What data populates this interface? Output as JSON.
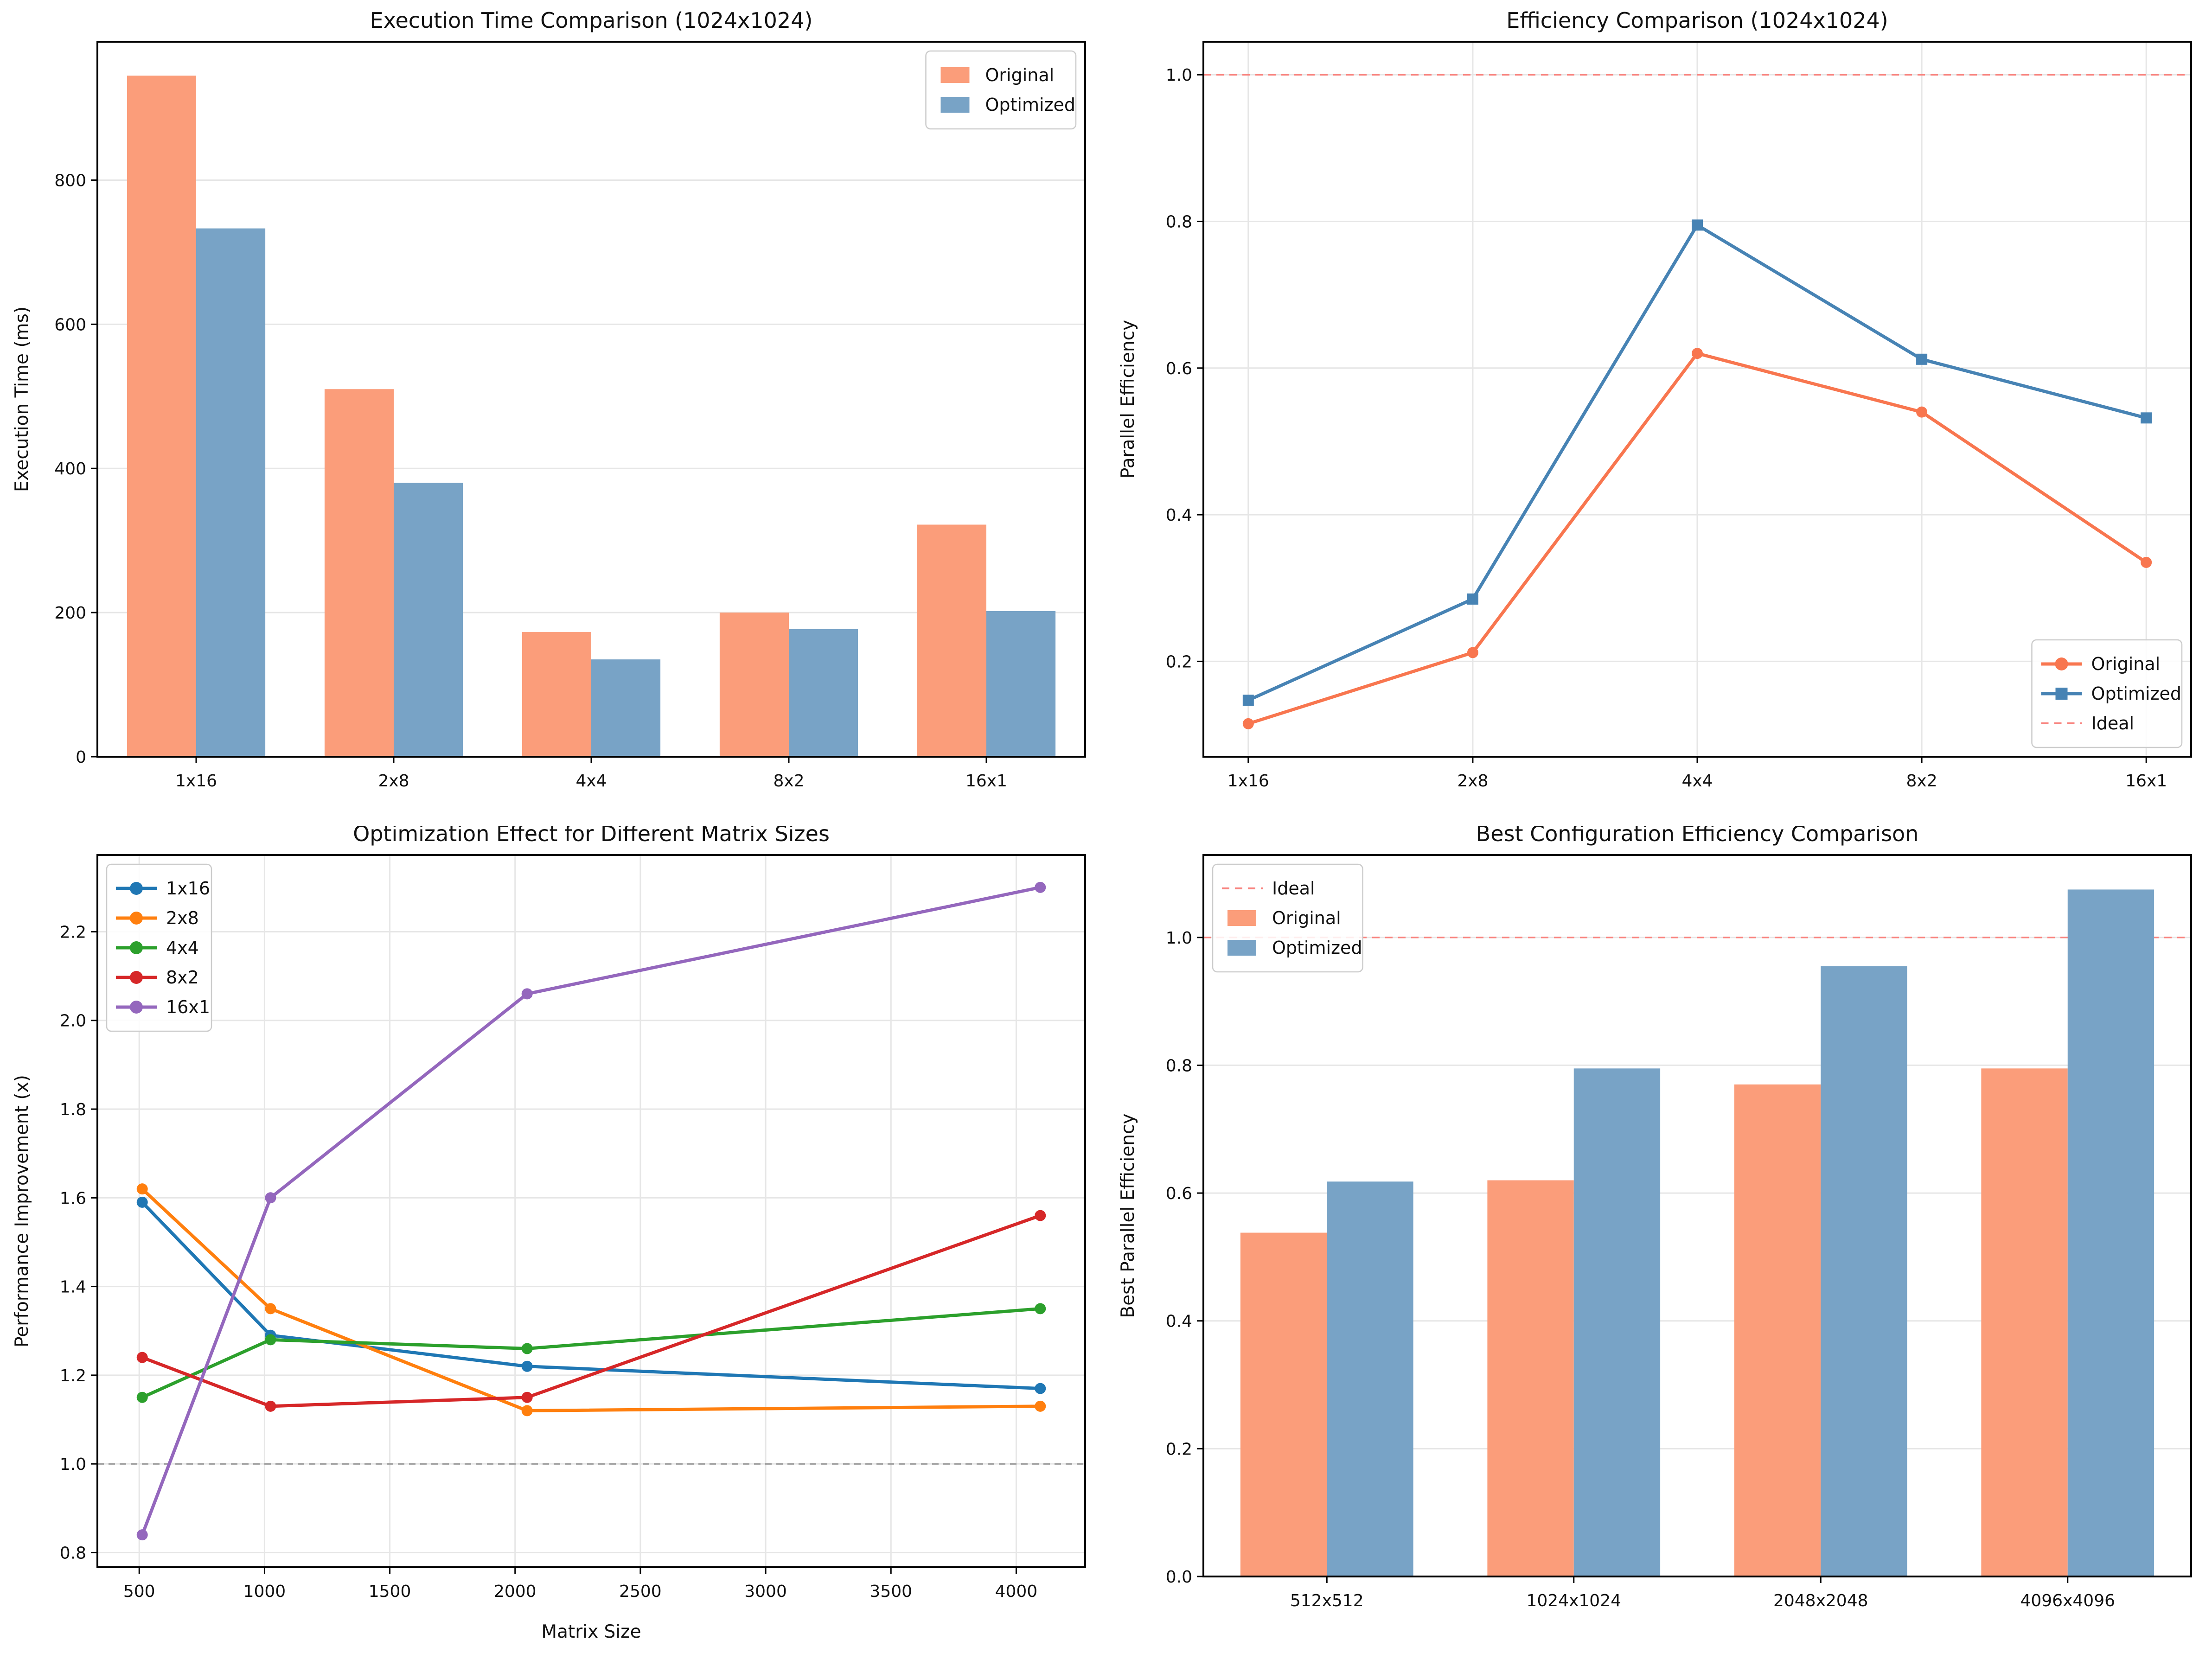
{
  "figure": {
    "background": "#ffffff",
    "grid_color": "#e6e6e6",
    "spine_color": "#000000",
    "text_color": "#111111",
    "legend_border_color": "#cccccc"
  },
  "chart_data": [
    {
      "id": "execution-time",
      "type": "bar",
      "title": "Execution Time Comparison (1024x1024)",
      "xlabel": "",
      "ylabel": "Execution Time (ms)",
      "categories": [
        "1x16",
        "2x8",
        "4x4",
        "8x2",
        "16x1"
      ],
      "series": [
        {
          "name": "Original",
          "color": "#fb9d7a",
          "values": [
            945,
            510,
            173,
            200,
            322
          ]
        },
        {
          "name": "Optimized",
          "color": "#78a3c6",
          "values": [
            733,
            380,
            135,
            177,
            202
          ]
        }
      ],
      "ylim": [
        0,
        992
      ],
      "yticks": {
        "values": [
          0,
          200,
          400,
          600,
          800
        ],
        "labels": [
          "0",
          "200",
          "400",
          "600",
          "800"
        ]
      },
      "grid": {
        "horizontal": true,
        "vertical": false
      },
      "ref_lines": [],
      "legend": {
        "loc": "upper-right",
        "items": [
          {
            "label": "Original",
            "swatch": "patch",
            "color": "#fb9d7a"
          },
          {
            "label": "Optimized",
            "swatch": "patch",
            "color": "#78a3c6"
          }
        ]
      }
    },
    {
      "id": "efficiency",
      "type": "line",
      "title": "Efficiency Comparison (1024x1024)",
      "xlabel": "",
      "ylabel": "Parallel Efficiency",
      "categories": [
        "1x16",
        "2x8",
        "4x4",
        "8x2",
        "16x1"
      ],
      "series": [
        {
          "name": "Original",
          "color": "#f8764f",
          "marker": "circle",
          "values": [
            0.115,
            0.212,
            0.62,
            0.54,
            0.335
          ]
        },
        {
          "name": "Optimized",
          "color": "#4783b4",
          "marker": "square",
          "values": [
            0.147,
            0.285,
            0.795,
            0.612,
            0.532
          ]
        }
      ],
      "ylim": [
        0.07,
        1.045
      ],
      "yticks": {
        "values": [
          0.2,
          0.4,
          0.6,
          0.8,
          1.0
        ],
        "labels": [
          "0.2",
          "0.4",
          "0.6",
          "0.8",
          "1.0"
        ]
      },
      "grid": {
        "horizontal": true,
        "vertical": true
      },
      "ref_lines": [
        {
          "y": 1.0,
          "color": "#f8827d",
          "width": 3.5,
          "dash": "16 12",
          "name": "ideal-line"
        }
      ],
      "legend": {
        "loc": "lower-right",
        "items": [
          {
            "label": "Original",
            "swatch": "line-circle",
            "color": "#f8764f"
          },
          {
            "label": "Optimized",
            "swatch": "line-square",
            "color": "#4783b4"
          },
          {
            "label": "Ideal",
            "swatch": "dash",
            "color": "#f8827d"
          }
        ]
      }
    },
    {
      "id": "optimization-effect",
      "type": "line",
      "title": "Optimization Effect for Different Matrix Sizes",
      "xlabel": "Matrix Size",
      "ylabel": "Performance Improvement (x)",
      "x": [
        512,
        1024,
        2048,
        4096
      ],
      "xlim": [
        333,
        4275
      ],
      "xticks": {
        "values": [
          500,
          1000,
          1500,
          2000,
          2500,
          3000,
          3500,
          4000
        ],
        "labels": [
          "500",
          "1000",
          "1500",
          "2000",
          "2500",
          "3000",
          "3500",
          "4000"
        ]
      },
      "series": [
        {
          "name": "1x16",
          "color": "#1f77b4",
          "marker": "circle",
          "values": [
            1.59,
            1.29,
            1.22,
            1.17
          ]
        },
        {
          "name": "2x8",
          "color": "#ff7f0e",
          "marker": "circle",
          "values": [
            1.62,
            1.35,
            1.12,
            1.13
          ]
        },
        {
          "name": "4x4",
          "color": "#2ca02c",
          "marker": "circle",
          "values": [
            1.15,
            1.28,
            1.26,
            1.35
          ]
        },
        {
          "name": "8x2",
          "color": "#d62728",
          "marker": "circle",
          "values": [
            1.24,
            1.13,
            1.15,
            1.56
          ]
        },
        {
          "name": "16x1",
          "color": "#9467bd",
          "marker": "circle",
          "values": [
            0.84,
            1.6,
            2.06,
            2.3
          ]
        }
      ],
      "ylim": [
        0.767,
        2.373
      ],
      "yticks": {
        "values": [
          0.8,
          1.0,
          1.2,
          1.4,
          1.6,
          1.8,
          2.0,
          2.2
        ],
        "labels": [
          "0.8",
          "1.0",
          "1.2",
          "1.4",
          "1.6",
          "1.8",
          "2.0",
          "2.2"
        ]
      },
      "grid": {
        "horizontal": true,
        "vertical": true
      },
      "ref_lines": [
        {
          "y": 1.0,
          "color": "#a0a0a0",
          "width": 3.5,
          "dash": "14 10",
          "name": "baseline-line"
        }
      ],
      "legend": {
        "loc": "upper-left",
        "items": [
          {
            "label": "1x16",
            "swatch": "line-circle",
            "color": "#1f77b4"
          },
          {
            "label": "2x8",
            "swatch": "line-circle",
            "color": "#ff7f0e"
          },
          {
            "label": "4x4",
            "swatch": "line-circle",
            "color": "#2ca02c"
          },
          {
            "label": "8x2",
            "swatch": "line-circle",
            "color": "#d62728"
          },
          {
            "label": "16x1",
            "swatch": "line-circle",
            "color": "#9467bd"
          }
        ]
      }
    },
    {
      "id": "best-configuration",
      "type": "bar",
      "title": "Best Configuration Efficiency Comparison",
      "xlabel": "",
      "ylabel": "Best Parallel Efficiency",
      "categories": [
        "512x512",
        "1024x1024",
        "2048x2048",
        "4096x4096"
      ],
      "series": [
        {
          "name": "Original",
          "color": "#fb9d7a",
          "values": [
            0.538,
            0.62,
            0.77,
            0.795
          ]
        },
        {
          "name": "Optimized",
          "color": "#78a3c6",
          "values": [
            0.618,
            0.795,
            0.955,
            1.075
          ]
        }
      ],
      "ylim": [
        0,
        1.129
      ],
      "yticks": {
        "values": [
          0.0,
          0.2,
          0.4,
          0.6,
          0.8,
          1.0
        ],
        "labels": [
          "0.0",
          "0.2",
          "0.4",
          "0.6",
          "0.8",
          "1.0"
        ]
      },
      "grid": {
        "horizontal": true,
        "vertical": false
      },
      "ref_lines": [
        {
          "y": 1.0,
          "color": "#f8827d",
          "width": 3.5,
          "dash": "16 12",
          "name": "ideal-line"
        }
      ],
      "legend": {
        "loc": "upper-left",
        "items": [
          {
            "label": "Ideal",
            "swatch": "dash",
            "color": "#f8827d"
          },
          {
            "label": "Original",
            "swatch": "patch",
            "color": "#fb9d7a"
          },
          {
            "label": "Optimized",
            "swatch": "patch",
            "color": "#78a3c6"
          }
        ]
      }
    }
  ]
}
